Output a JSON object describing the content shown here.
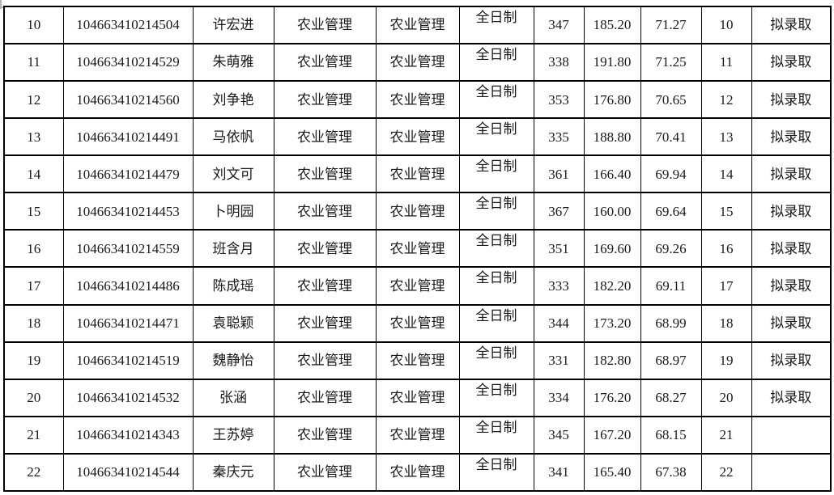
{
  "colors": {
    "table_border": "#000000",
    "text": "#1a1a1a",
    "background": "#ffffff"
  },
  "table": {
    "rows": [
      [
        "10",
        "104663410214504",
        "许宏进",
        "农业管理",
        "农业管理",
        "全日制",
        "347",
        "185.20",
        "71.27",
        "10",
        "拟录取"
      ],
      [
        "11",
        "104663410214529",
        "朱萌雅",
        "农业管理",
        "农业管理",
        "全日制",
        "338",
        "191.80",
        "71.25",
        "11",
        "拟录取"
      ],
      [
        "12",
        "104663410214560",
        "刘争艳",
        "农业管理",
        "农业管理",
        "全日制",
        "353",
        "176.80",
        "70.65",
        "12",
        "拟录取"
      ],
      [
        "13",
        "104663410214491",
        "马依帆",
        "农业管理",
        "农业管理",
        "全日制",
        "335",
        "188.80",
        "70.41",
        "13",
        "拟录取"
      ],
      [
        "14",
        "104663410214479",
        "刘文可",
        "农业管理",
        "农业管理",
        "全日制",
        "361",
        "166.40",
        "69.94",
        "14",
        "拟录取"
      ],
      [
        "15",
        "104663410214453",
        "卜明园",
        "农业管理",
        "农业管理",
        "全日制",
        "367",
        "160.00",
        "69.64",
        "15",
        "拟录取"
      ],
      [
        "16",
        "104663410214559",
        "班含月",
        "农业管理",
        "农业管理",
        "全日制",
        "351",
        "169.60",
        "69.26",
        "16",
        "拟录取"
      ],
      [
        "17",
        "104663410214486",
        "陈成瑶",
        "农业管理",
        "农业管理",
        "全日制",
        "333",
        "182.20",
        "69.11",
        "17",
        "拟录取"
      ],
      [
        "18",
        "104663410214471",
        "袁聪颖",
        "农业管理",
        "农业管理",
        "全日制",
        "344",
        "173.20",
        "68.99",
        "18",
        "拟录取"
      ],
      [
        "19",
        "104663410214519",
        "魏静怡",
        "农业管理",
        "农业管理",
        "全日制",
        "331",
        "182.80",
        "68.97",
        "19",
        "拟录取"
      ],
      [
        "20",
        "104663410214532",
        "张涵",
        "农业管理",
        "农业管理",
        "全日制",
        "334",
        "176.20",
        "68.27",
        "20",
        "拟录取"
      ],
      [
        "21",
        "104663410214343",
        "王苏婷",
        "农业管理",
        "农业管理",
        "全日制",
        "345",
        "167.20",
        "68.15",
        "21",
        ""
      ],
      [
        "22",
        "104663410214544",
        "秦庆元",
        "农业管理",
        "农业管理",
        "全日制",
        "341",
        "165.40",
        "67.38",
        "22",
        ""
      ]
    ]
  }
}
